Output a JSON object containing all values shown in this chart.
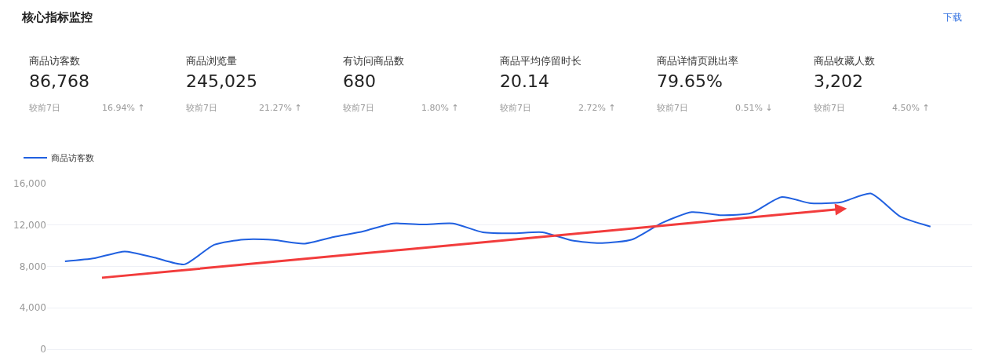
{
  "chart_data": [
    {
      "type": "other",
      "title": "核心指标监控",
      "annotations": [
        "下载",
        "商品访客数",
        "86,768",
        "较前7日",
        "16.94% ↑",
        "商品浏览量",
        "245,025",
        "较前7日",
        "21.27% ↑",
        "有访问商品数",
        "680",
        "较前7日",
        "1.80% ↑",
        "商品平均停留时长",
        "20.14",
        "较前7日",
        "2.72% ↑",
        "商品详情页跳出率",
        "79.65%",
        "较前7日",
        "0.51% ↓",
        "商品收藏人数",
        "3,202",
        "较前7日",
        "4.50% ↑"
      ]
    },
    {
      "type": "line",
      "legend": "top left",
      "grid": "y",
      "categories": [
        null,
        null,
        null,
        null,
        null,
        null,
        null,
        null,
        null,
        null,
        null,
        null,
        null,
        null,
        null,
        null,
        null,
        null,
        null,
        null,
        null,
        null,
        null,
        null,
        null,
        null,
        null,
        null,
        null,
        null
      ],
      "ylim": [
        0,
        16000
      ],
      "yticks": [
        {
          "value": 0,
          "label": "0"
        },
        {
          "value": 4000,
          "label": "4,000"
        },
        {
          "value": 8000,
          "label": "8,000"
        },
        {
          "value": 12000,
          "label": "12,000"
        },
        {
          "value": 16000,
          "label": "16,000"
        }
      ],
      "series": [
        {
          "name": "商品访客数",
          "color": "#2060e0",
          "values": [
            8500,
            8800,
            9450,
            8850,
            8200,
            10100,
            10600,
            10550,
            10200,
            10850,
            11400,
            12150,
            12050,
            12150,
            11300,
            11200,
            11300,
            10500,
            10250,
            10600,
            12200,
            13250,
            12950,
            13150,
            14700,
            14100,
            14200,
            15050,
            12800,
            11850
          ]
        }
      ]
    }
  ]
}
